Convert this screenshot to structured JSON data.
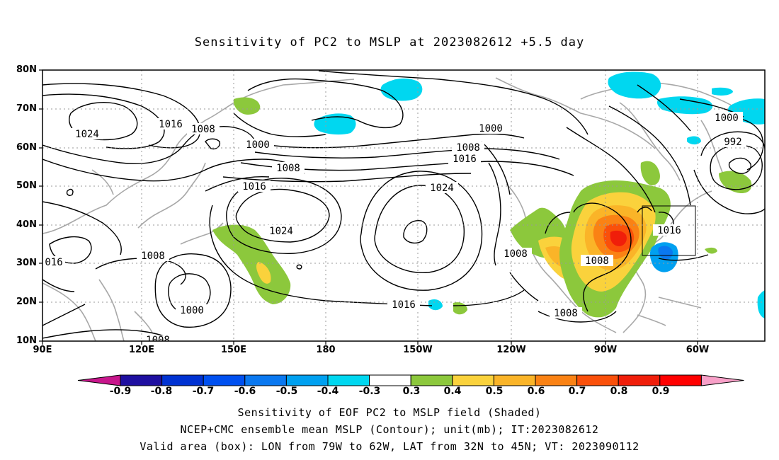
{
  "title": "Sensitivity of PC2 to MSLP at 2023082612 +5.5 day",
  "lat_labels": [
    "80N",
    "70N",
    "60N",
    "50N",
    "40N",
    "30N",
    "20N",
    "10N"
  ],
  "lon_labels": [
    "90E",
    "120E",
    "150E",
    "180",
    "150W",
    "120W",
    "90W",
    "60W"
  ],
  "contour_labels": [
    "1024",
    "1016",
    "1008",
    "1000",
    "1008",
    "1016",
    "1000",
    "1008",
    "1016",
    "1024",
    "1024",
    "1008",
    "1000",
    "992",
    "1016",
    "1008",
    "016",
    "1008",
    "1000",
    "1016",
    "1008",
    "1008"
  ],
  "colorbar": {
    "labels": [
      "-0.9",
      "-0.8",
      "-0.7",
      "-0.6",
      "-0.5",
      "-0.4",
      "-0.3",
      "0.3",
      "0.4",
      "0.5",
      "0.6",
      "0.7",
      "0.8",
      "0.9"
    ],
    "colors": [
      "#1e0fa0",
      "#0032d2",
      "#0050f0",
      "#0a78f0",
      "#00a0f0",
      "#00d7f0",
      "#ffffff",
      "#8cc83c",
      "#fad23c",
      "#fab428",
      "#fa8214",
      "#fa500a",
      "#f01e0a",
      "#ff0000"
    ],
    "low_end_color": "#c8168c",
    "high_end_color": "#f8a0c8"
  },
  "captions": [
    "Sensitivity of EOF PC2 to MSLP field (Shaded)",
    "NCEP+CMC ensemble mean MSLP (Contour); unit(mb); IT:2023082612",
    "Valid area (box): LON from 79W to 62W, LAT from 32N to 45N; VT: 2023090112"
  ]
}
